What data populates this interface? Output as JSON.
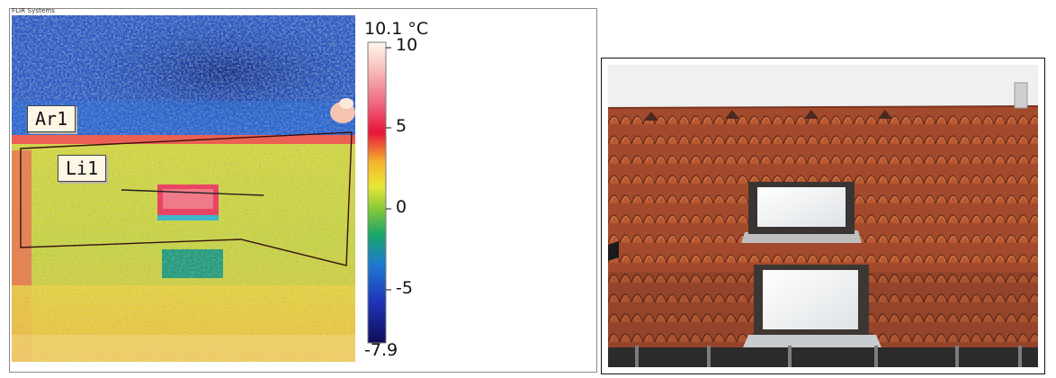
{
  "thermal": {
    "brand": "FLIR Systems",
    "area_label": "Ar1",
    "line_label": "Li1",
    "scale": {
      "max_label": "10.1 °C",
      "min_label": "-7.9",
      "ticks": [
        "10",
        "5",
        "0",
        "-5"
      ],
      "palette": "iron-rainbow"
    }
  },
  "photo": {
    "subject": "tiled-roof-with-two-skylights"
  }
}
